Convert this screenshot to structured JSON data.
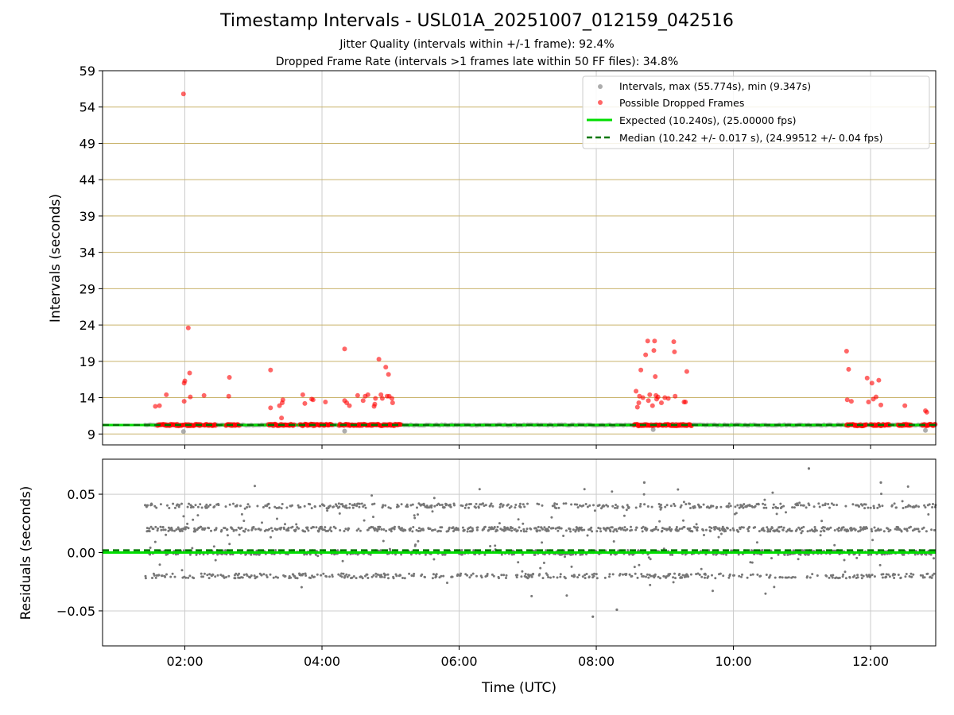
{
  "title": "Timestamp Intervals - USL01A_20251007_012159_042516",
  "subtitle_jitter": "Jitter Quality (intervals within +/-1 frame): 92.4%",
  "subtitle_dropped": "Dropped Frame Rate (intervals >1 frames late within 50 FF files): 34.8%",
  "colors": {
    "intervals": "#999999",
    "dropped": "#ff0000",
    "expected": "#00dd00",
    "median": "#007700",
    "residuals": "#777777",
    "hgrid_top": "#c9b36b",
    "grid": "#cccccc"
  },
  "chart_data": [
    {
      "type": "scatter",
      "name": "intervals",
      "title": "Timestamp Intervals - USL01A_20251007_012159_042516",
      "xlabel": "Time (UTC)",
      "ylabel": "Intervals (seconds)",
      "xlim_hours": [
        0.8,
        12.95
      ],
      "ylim": [
        7.5,
        59
      ],
      "yticks": [
        "9",
        "14",
        "19",
        "24",
        "29",
        "34",
        "39",
        "44",
        "49",
        "54",
        "59"
      ],
      "yticks_values": [
        9,
        14,
        19,
        24,
        29,
        34,
        39,
        44,
        49,
        54,
        59
      ],
      "xticks_values": [
        2,
        4,
        6,
        8,
        10,
        12
      ],
      "grid": "horizontal lines and vertical lines at major x ticks",
      "legend_position": "top-right",
      "legend": [
        "Intervals, max (55.774s), min (9.347s)",
        "Possible Dropped Frames",
        "Expected (10.240s), (25.00000 fps)",
        "Median (10.242 +/- 0.017 s), (24.99512 +/- 0.04 fps)"
      ],
      "series": [
        {
          "name": "Intervals",
          "description": "Continuous band of intervals near 10.24 s from 01:25 to 12:55 UTC, min 9.347, max 55.774",
          "x_range_hours": [
            1.42,
            12.95
          ],
          "baseline": 10.24,
          "outliers_low": [
            [
              1.98,
              9.35
            ],
            [
              4.33,
              9.4
            ],
            [
              8.83,
              9.6
            ],
            [
              12.8,
              9.5
            ]
          ]
        },
        {
          "name": "Possible Dropped Frames",
          "dense_clusters_hours": [
            [
              1.6,
              1.98
            ],
            [
              2.0,
              2.25
            ],
            [
              2.28,
              2.45
            ],
            [
              2.6,
              2.8
            ],
            [
              3.22,
              3.6
            ],
            [
              3.68,
              4.15
            ],
            [
              4.25,
              4.3
            ],
            [
              4.32,
              5.15
            ],
            [
              8.55,
              9.4
            ],
            [
              11.65,
              11.95
            ],
            [
              12.0,
              12.28
            ],
            [
              12.4,
              12.6
            ],
            [
              12.75,
              12.95
            ]
          ],
          "cluster_value": 10.24,
          "points": [
            [
              1.57,
              12.8
            ],
            [
              1.63,
              12.9
            ],
            [
              1.73,
              14.4
            ],
            [
              1.98,
              55.8
            ],
            [
              1.99,
              13.5
            ],
            [
              1.99,
              16.0
            ],
            [
              2.0,
              16.3
            ],
            [
              2.05,
              23.6
            ],
            [
              2.07,
              17.4
            ],
            [
              2.08,
              14.1
            ],
            [
              2.28,
              14.3
            ],
            [
              2.64,
              14.2
            ],
            [
              2.65,
              16.8
            ],
            [
              3.25,
              17.8
            ],
            [
              3.25,
              12.6
            ],
            [
              3.38,
              12.9
            ],
            [
              3.41,
              11.2
            ],
            [
              3.42,
              13.3
            ],
            [
              3.43,
              13.7
            ],
            [
              3.72,
              14.4
            ],
            [
              3.75,
              13.2
            ],
            [
              3.85,
              13.8
            ],
            [
              3.87,
              13.7
            ],
            [
              4.05,
              13.4
            ],
            [
              4.33,
              20.7
            ],
            [
              4.33,
              13.6
            ],
            [
              4.36,
              13.3
            ],
            [
              4.4,
              12.9
            ],
            [
              4.52,
              14.3
            ],
            [
              4.6,
              13.6
            ],
            [
              4.63,
              14.2
            ],
            [
              4.67,
              14.4
            ],
            [
              4.76,
              12.8
            ],
            [
              4.77,
              13.1
            ],
            [
              4.78,
              13.9
            ],
            [
              4.83,
              19.3
            ],
            [
              4.86,
              14.4
            ],
            [
              4.88,
              13.9
            ],
            [
              4.93,
              18.2
            ],
            [
              4.95,
              14.2
            ],
            [
              4.97,
              17.2
            ],
            [
              4.98,
              14.2
            ],
            [
              5.02,
              13.9
            ],
            [
              5.03,
              13.3
            ],
            [
              8.58,
              14.9
            ],
            [
              8.6,
              12.7
            ],
            [
              8.62,
              13.3
            ],
            [
              8.63,
              14.2
            ],
            [
              8.65,
              17.8
            ],
            [
              8.68,
              14.0
            ],
            [
              8.72,
              19.9
            ],
            [
              8.75,
              21.8
            ],
            [
              8.76,
              13.6
            ],
            [
              8.78,
              14.4
            ],
            [
              8.82,
              12.9
            ],
            [
              8.84,
              20.5
            ],
            [
              8.85,
              21.8
            ],
            [
              8.86,
              16.9
            ],
            [
              8.87,
              14.3
            ],
            [
              8.88,
              13.8
            ],
            [
              8.9,
              14.1
            ],
            [
              8.95,
              13.3
            ],
            [
              9.0,
              14.0
            ],
            [
              9.05,
              13.9
            ],
            [
              9.13,
              21.7
            ],
            [
              9.14,
              20.3
            ],
            [
              9.15,
              14.2
            ],
            [
              9.28,
              13.4
            ],
            [
              9.3,
              13.4
            ],
            [
              9.32,
              17.6
            ],
            [
              11.65,
              20.4
            ],
            [
              11.66,
              13.7
            ],
            [
              11.68,
              17.9
            ],
            [
              11.72,
              13.5
            ],
            [
              11.95,
              16.7
            ],
            [
              11.97,
              13.4
            ],
            [
              12.02,
              16.0
            ],
            [
              12.04,
              13.8
            ],
            [
              12.08,
              14.1
            ],
            [
              12.12,
              16.4
            ],
            [
              12.15,
              13.0
            ],
            [
              12.5,
              12.9
            ],
            [
              12.8,
              12.2
            ],
            [
              12.82,
              12.0
            ]
          ]
        },
        {
          "name": "Expected",
          "value": 10.24
        },
        {
          "name": "Median",
          "value": 10.242
        }
      ]
    },
    {
      "type": "scatter",
      "name": "residuals",
      "xlabel": "Time (UTC)",
      "ylabel": "Residuals (seconds)",
      "xlim_hours": [
        0.8,
        12.95
      ],
      "ylim": [
        -0.08,
        0.08
      ],
      "yticks": [
        "−0.05",
        "0.00",
        "0.05"
      ],
      "yticks_values": [
        -0.05,
        0.0,
        0.05
      ],
      "xticks": [
        "02:00",
        "04:00",
        "06:00",
        "08:00",
        "10:00",
        "12:00"
      ],
      "xticks_values": [
        2,
        4,
        6,
        8,
        10,
        12
      ],
      "grid": true,
      "series": [
        {
          "name": "Residuals",
          "description": "Residual points quantized into bands at approximately -0.02, 0.00, +0.02 and +0.04 s with scattered values between -0.055 and 0.072",
          "bands": [
            -0.02,
            0.0,
            0.02,
            0.04
          ],
          "x_range_hours": [
            1.42,
            12.95
          ],
          "extremes": [
            [
              7.95,
              -0.055
            ],
            [
              8.3,
              -0.049
            ],
            [
              11.1,
              0.072
            ],
            [
              8.7,
              0.06
            ],
            [
              12.15,
              0.06
            ]
          ]
        },
        {
          "name": "Expected zero line",
          "value": 0.0
        },
        {
          "name": "Median offset",
          "value": 0.002
        }
      ]
    }
  ]
}
